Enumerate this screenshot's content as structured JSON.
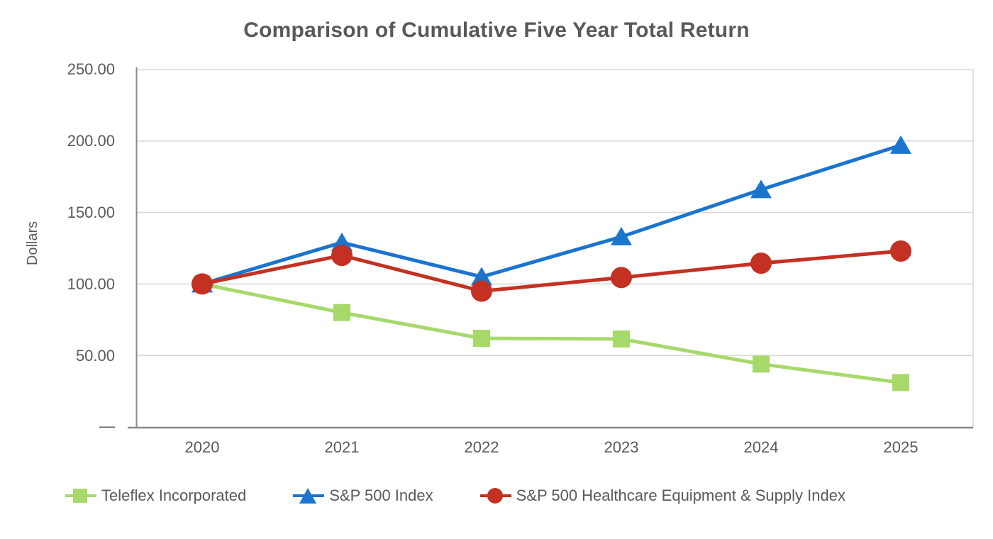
{
  "title": "Comparison of Cumulative Five Year Total Return",
  "y_axis": {
    "label": "Dollars",
    "tick_labels": [
      "250.00",
      "200.00",
      "150.00",
      "100.00",
      "50.00",
      "—"
    ],
    "tick_values": [
      250,
      200,
      150,
      100,
      50,
      0
    ]
  },
  "x_axis": {
    "tick_labels": [
      "2020",
      "2021",
      "2022",
      "2023",
      "2024",
      "2025"
    ]
  },
  "chart_data": {
    "type": "line",
    "title": "Comparison of Cumulative Five Year Total Return",
    "xlabel": "",
    "ylabel": "Dollars",
    "categories": [
      "2020",
      "2021",
      "2022",
      "2023",
      "2024",
      "2025"
    ],
    "ylim": [
      0,
      250
    ],
    "y_tick_interval": 50,
    "grid": true,
    "legend_position": "bottom",
    "series": [
      {
        "name": "Teleflex Incorporated",
        "marker": "square",
        "color": "#A6D96A",
        "values": [
          100.0,
          80.0,
          62.0,
          61.5,
          44.0,
          31.0
        ]
      },
      {
        "name": "S&P 500 Index",
        "marker": "triangle",
        "color": "#1B74CE",
        "values": [
          100.0,
          129.0,
          105.0,
          133.0,
          166.0,
          197.0
        ]
      },
      {
        "name": "S&P 500 Healthcare Equipment & Supply Index",
        "marker": "circle",
        "color": "#C43122",
        "values": [
          100.0,
          120.0,
          95.0,
          104.5,
          114.5,
          123.0
        ]
      }
    ]
  },
  "colors": {
    "text": "#595959",
    "gridline": "#D9D9D9",
    "axis_line": "#8A8A8A",
    "background": "#FFFFFF"
  }
}
